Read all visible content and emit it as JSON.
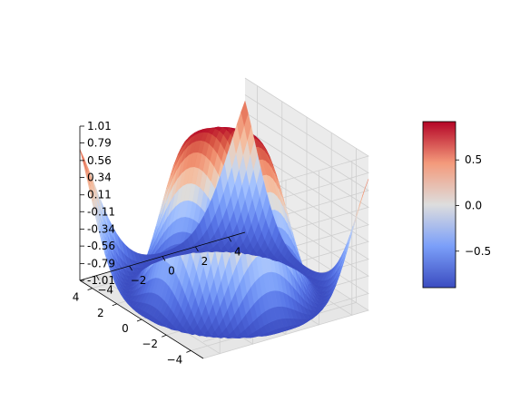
{
  "chart_data": {
    "type": "surface3d",
    "function": "z = sin(sqrt(x^2 + y^2))",
    "x_range": [
      -5,
      5
    ],
    "y_range": [
      -5,
      5
    ],
    "x_ticks": [
      -4,
      -2,
      0,
      2,
      4
    ],
    "y_ticks": [
      -4,
      -2,
      0,
      2,
      4
    ],
    "z_range": [
      -1.01,
      1.01
    ],
    "z_ticks": [
      "1.01",
      "0.79",
      "0.56",
      "0.34",
      "0.11",
      "-0.11",
      "-0.34",
      "-0.56",
      "-0.79",
      "-1.01"
    ],
    "colormap": "coolwarm",
    "colormap_colors": [
      "#3b4cc0",
      "#dddddd",
      "#b40426"
    ],
    "colorbar": {
      "range": [
        -0.9,
        0.92
      ],
      "ticks": [
        0.5,
        0,
        -0.5
      ],
      "tick_labels": [
        "0.5",
        "0.0",
        "−0.5"
      ]
    },
    "grid": true,
    "legend": "none",
    "view": {
      "elev": 30,
      "azim": -60
    }
  }
}
